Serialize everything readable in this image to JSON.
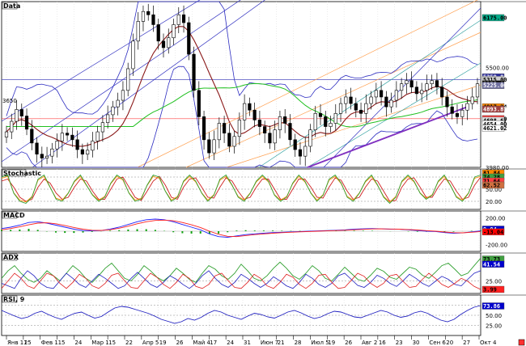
{
  "chart_data": {
    "type": "candlestick-with-indicators",
    "panels": [
      {
        "id": "data",
        "label": "Data"
      },
      {
        "id": "stochastic",
        "label": "Stochastic"
      },
      {
        "id": "macd",
        "label": "MACD"
      },
      {
        "id": "adx",
        "label": "ADX"
      },
      {
        "id": "rsi",
        "label": "RSI, 9"
      }
    ],
    "x_labels": [
      "Янв 11",
      "25",
      "Фев 1",
      "15",
      "24",
      "Мар 1",
      "15",
      "22",
      "Апр 5",
      "19",
      "26",
      "Май 4",
      "17",
      "24",
      "31",
      "Июн 7",
      "21",
      "28",
      "Июл 5",
      "19",
      "26",
      "Авг 2",
      "16",
      "23",
      "30",
      "Сен 6",
      "20",
      "27",
      "Окт 4"
    ],
    "price": {
      "ylim": [
        3980,
        6500
      ],
      "ticks": [
        {
          "value": 5500,
          "label": "5500.00"
        },
        {
          "value": 3980,
          "label": "3980.00",
          "color": "#ff4040"
        }
      ],
      "tags": [
        {
          "value": 6255,
          "label": "6175.00",
          "bg": "#00aa88",
          "fg": "#000"
        },
        {
          "value": 5355,
          "label": "5359.84",
          "bg": "#2c2c9c",
          "fg": "#fff"
        },
        {
          "value": 5315,
          "label": "5315.00",
          "bg": "#d0d0d0",
          "fg": "#000"
        },
        {
          "value": 5250,
          "label": "5255.00",
          "bg": "#000000",
          "fg": "#fff"
        },
        {
          "value": 5225,
          "label": "5225.00",
          "bg": "#7070a0",
          "fg": "#fff"
        },
        {
          "value": 4900,
          "label": "4917.24",
          "bg": "#ff8800",
          "fg": "#000"
        },
        {
          "value": 4865,
          "label": "4893.87",
          "bg": "#a04040",
          "fg": "#fff"
        },
        {
          "value": 4720,
          "label": "5000.00",
          "bg": "#ff4040",
          "fg": "#000"
        },
        {
          "value": 4695,
          "label": "4698.67",
          "bg": "#e0e0e0",
          "fg": "#000"
        },
        {
          "value": 4640,
          "label": "4654.00",
          "bg": "#ffffff",
          "fg": "#000"
        },
        {
          "value": 4575,
          "label": "4621.02",
          "bg": "#ffffff",
          "fg": "#000"
        }
      ],
      "side_label": "3650",
      "closes": [
        4520,
        4680,
        4860,
        4760,
        4560,
        4350,
        4180,
        4120,
        4150,
        4260,
        4380,
        4500,
        4470,
        4400,
        4250,
        4180,
        4240,
        4380,
        4520,
        4660,
        4780,
        4900,
        5000,
        5150,
        5480,
        5900,
        6200,
        6350,
        6300,
        6150,
        5900,
        5800,
        5950,
        6150,
        6300,
        6180,
        5700,
        5150,
        4750,
        4400,
        4200,
        4400,
        4650,
        4500,
        4300,
        4450,
        4700,
        4950,
        4850,
        4700,
        4600,
        4500,
        4350,
        4550,
        4750,
        4650,
        4400,
        4250,
        4150,
        4300,
        4550,
        4800,
        4750,
        4600,
        4650,
        4800,
        4950,
        5050,
        4950,
        4850,
        4800,
        4950,
        5050,
        5150,
        5050,
        4900,
        5000,
        5150,
        5250,
        5300,
        5200,
        5100,
        5150,
        5250,
        5300,
        5200,
        5050,
        4900,
        4800,
        4750,
        4850,
        4950,
        5050,
        5250
      ]
    },
    "stochastic": {
      "ticks": [
        {
          "value": 50,
          "label": "50.00"
        },
        {
          "value": 20,
          "label": "20.00"
        }
      ],
      "tags": [
        {
          "value": 90,
          "label": "81.84",
          "bg": "#ff8800",
          "fg": "#000"
        },
        {
          "value": 80,
          "label": "74.28",
          "bg": "#40a040",
          "fg": "#000"
        },
        {
          "value": 70,
          "label": "71.64",
          "bg": "#ff4040",
          "fg": "#000"
        },
        {
          "value": 60,
          "label": "62.52",
          "bg": "#d07040",
          "fg": "#000"
        }
      ],
      "k": [
        80,
        85,
        40,
        20,
        15,
        30,
        75,
        85,
        55,
        25,
        20,
        40,
        70,
        85,
        60,
        35,
        20,
        30,
        65,
        85,
        75,
        40,
        20,
        25,
        60,
        85,
        80,
        45,
        20,
        30,
        70,
        85,
        70,
        40,
        20,
        35,
        75,
        85,
        60,
        30,
        20,
        40,
        70,
        85,
        70,
        35,
        20,
        30,
        65,
        85,
        70,
        40,
        20,
        35,
        75,
        85,
        65,
        30,
        20,
        40,
        70,
        85,
        60,
        30,
        15,
        30,
        70,
        85,
        70,
        40,
        25,
        35,
        70,
        85,
        60,
        30,
        20,
        40,
        80,
        85
      ],
      "d": [
        70,
        75,
        55,
        30,
        20,
        25,
        55,
        75,
        65,
        40,
        25,
        30,
        55,
        75,
        70,
        45,
        25,
        25,
        50,
        75,
        80,
        55,
        30,
        22,
        45,
        70,
        82,
        60,
        30,
        25,
        55,
        75,
        78,
        55,
        30,
        28,
        55,
        78,
        70,
        45,
        25,
        30,
        55,
        75,
        75,
        50,
        25,
        25,
        50,
        75,
        75,
        55,
        30,
        28,
        55,
        78,
        72,
        45,
        25,
        30,
        55,
        75,
        70,
        45,
        20,
        22,
        55,
        75,
        78,
        55,
        30,
        30,
        55,
        75,
        70,
        45,
        25,
        30,
        60,
        80
      ]
    },
    "macd": {
      "ticks": [
        {
          "value": 200,
          "label": "200.00"
        },
        {
          "value": -200,
          "label": "-200.00"
        }
      ],
      "tags": [
        {
          "value": 30,
          "label": "9.04",
          "bg": "#0000cc",
          "fg": "#fff"
        },
        {
          "value": -10,
          "label": "-13.04",
          "bg": "#ff0000",
          "fg": "#000"
        }
      ],
      "macd": [
        40,
        60,
        90,
        130,
        140,
        120,
        90,
        60,
        30,
        10,
        5,
        10,
        30,
        60,
        100,
        140,
        170,
        180,
        170,
        140,
        100,
        60,
        20,
        -40,
        -80,
        -90,
        -70,
        -50,
        -40,
        -30,
        -20,
        -15,
        -10,
        -5,
        0,
        5,
        10,
        15,
        20,
        30,
        35,
        40,
        35,
        30,
        30,
        20,
        10,
        0,
        -5,
        -20,
        -30,
        -25,
        -10,
        5
      ],
      "signal": [
        20,
        40,
        65,
        95,
        120,
        125,
        110,
        85,
        55,
        30,
        15,
        12,
        22,
        45,
        75,
        110,
        140,
        160,
        165,
        155,
        130,
        95,
        55,
        0,
        -45,
        -75,
        -80,
        -65,
        -50,
        -40,
        -30,
        -22,
        -15,
        -10,
        -5,
        0,
        5,
        10,
        15,
        22,
        28,
        34,
        35,
        32,
        30,
        25,
        18,
        8,
        0,
        -12,
        -22,
        -24,
        -16,
        -5
      ],
      "hist": [
        20,
        20,
        25,
        35,
        20,
        -5,
        -20,
        -25,
        -25,
        -20,
        -10,
        -2,
        8,
        15,
        25,
        30,
        30,
        20,
        5,
        -15,
        -30,
        -35,
        -35,
        -40,
        -35,
        -15,
        10,
        15,
        10,
        10,
        10,
        7,
        5,
        5,
        5,
        5,
        5,
        5,
        5,
        8,
        7,
        6,
        0,
        -2,
        0,
        -5,
        -8,
        -8,
        -5,
        -8,
        -8,
        -1,
        6,
        10
      ]
    },
    "adx": {
      "ticks": [
        {
          "value": 25,
          "label": "25.00"
        }
      ],
      "tags": [
        {
          "value": 68,
          "label": "73.73",
          "bg": "#40a040",
          "fg": "#000"
        },
        {
          "value": 58,
          "label": "41.54",
          "bg": "#0000cc",
          "fg": "#fff"
        },
        {
          "value": 8,
          "label": "3.99",
          "bg": "#ff2020",
          "fg": "#000"
        }
      ],
      "adx": [
        30,
        45,
        55,
        40,
        28,
        22,
        30,
        45,
        35,
        25,
        40,
        55,
        45,
        30,
        22,
        35,
        50,
        60,
        45,
        30,
        25,
        38,
        55,
        45,
        32,
        25,
        35,
        50,
        40,
        28,
        22,
        40,
        55,
        48,
        35,
        28,
        40,
        58,
        45,
        30,
        25,
        35,
        50,
        62,
        50,
        35,
        28,
        40,
        55,
        45,
        30,
        25,
        38,
        52,
        40,
        28,
        24,
        36,
        50,
        44,
        32,
        28,
        40,
        52,
        48,
        36,
        30,
        42,
        55,
        60,
        48,
        35,
        40,
        55,
        70
      ],
      "pdi": [
        20,
        15,
        10,
        30,
        45,
        35,
        20,
        12,
        10,
        25,
        40,
        30,
        18,
        12,
        25,
        38,
        30,
        20,
        10,
        15,
        30,
        42,
        30,
        18,
        12,
        22,
        35,
        28,
        18,
        10,
        20,
        35,
        45,
        30,
        18,
        12,
        22,
        38,
        30,
        20,
        12,
        20,
        33,
        25,
        15,
        10,
        22,
        38,
        30,
        18,
        12,
        20,
        35,
        40,
        28,
        16,
        12,
        22,
        36,
        30,
        20,
        14,
        25,
        38,
        30,
        20,
        14,
        24,
        34,
        28,
        18,
        15,
        28,
        40,
        45
      ],
      "mdi": [
        10,
        25,
        40,
        30,
        15,
        10,
        25,
        40,
        35,
        20,
        10,
        22,
        38,
        30,
        15,
        10,
        20,
        36,
        40,
        25,
        12,
        10,
        25,
        40,
        32,
        18,
        10,
        22,
        38,
        30,
        14,
        10,
        18,
        35,
        40,
        25,
        12,
        10,
        22,
        38,
        30,
        15,
        10,
        22,
        38,
        32,
        18,
        10,
        20,
        36,
        38,
        22,
        10,
        12,
        26,
        40,
        34,
        20,
        12,
        20,
        35,
        38,
        24,
        12,
        14,
        28,
        40,
        30,
        18,
        12,
        20,
        30,
        24,
        14,
        8
      ]
    },
    "rsi": {
      "ticks": [
        {
          "value": 50,
          "label": "50.00"
        },
        {
          "value": 25,
          "label": "25.00"
        }
      ],
      "tags": [
        {
          "value": 73,
          "label": "73.86",
          "bg": "#0000cc",
          "fg": "#fff"
        }
      ],
      "values": [
        62,
        55,
        48,
        42,
        46,
        55,
        60,
        52,
        45,
        40,
        48,
        55,
        58,
        50,
        43,
        47,
        58,
        68,
        72,
        70,
        65,
        60,
        55,
        48,
        40,
        35,
        30,
        34,
        42,
        38,
        45,
        55,
        62,
        58,
        50,
        45,
        40,
        48,
        55,
        52,
        46,
        43,
        50,
        58,
        62,
        56,
        48,
        42,
        46,
        54,
        60,
        58,
        52,
        46,
        44,
        50,
        56,
        62,
        58,
        50,
        45,
        48,
        56,
        60,
        55,
        46,
        38,
        34,
        40,
        52,
        62,
        70,
        74
      ]
    }
  }
}
